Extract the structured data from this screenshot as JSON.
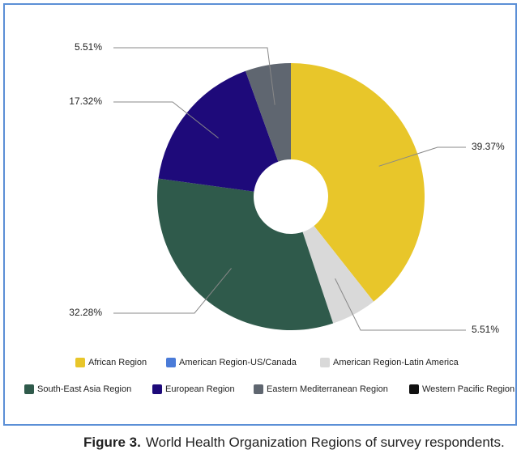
{
  "chart_data": {
    "type": "pie",
    "categories": [
      "African Region",
      "American Region-US/Canada",
      "American Region-Latin America",
      "South-East Asia Region",
      "European Region",
      "Eastern Mediterranean Region",
      "Western Pacific Region"
    ],
    "values": [
      39.37,
      0,
      5.51,
      32.28,
      17.32,
      5.51,
      0
    ],
    "value_labels": [
      "39.37%",
      null,
      "5.51%",
      "32.28%",
      "17.32%",
      "5.51%",
      null
    ],
    "colors": [
      "#e8c62a",
      "#4a7bd8",
      "#d9d9d9",
      "#2f5a4b",
      "#1e0a7a",
      "#5f6670",
      "#111111"
    ],
    "donut": true,
    "legend": "bottom"
  },
  "caption": {
    "label": "Figure 3.",
    "text": "World Health Organization Regions of survey respondents."
  }
}
